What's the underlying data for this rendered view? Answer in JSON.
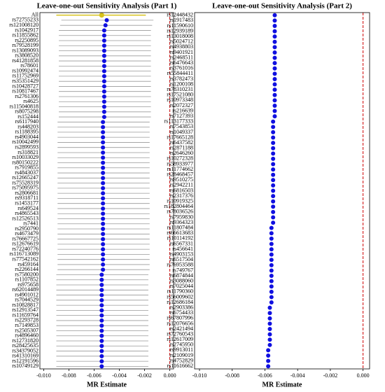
{
  "chart_data": [
    {
      "type": "forest",
      "title": "Leave-one-out Sensitivity Analysis (Part 1)",
      "xlabel": "MR Estimate",
      "categories": [
        "All",
        "rs72755233",
        "rs121008120",
        "rs1042917",
        "rs11855862",
        "rs2250895",
        "rs79528199",
        "rs13089093",
        "rs3808520",
        "rs41281858",
        "rs78601",
        "rs10992474",
        "rs11752969",
        "rs35351429",
        "rs10428727",
        "rs10817467",
        "rs2761306",
        "rs4625",
        "rs115040818",
        "rs8075298",
        "rs152444",
        "rs6117940",
        "rs448203",
        "rs1188395",
        "rs4903044",
        "rs10042499",
        "rs2899593",
        "rs318821",
        "rs10033029",
        "rs80150222",
        "rs7919855",
        "rs4843037",
        "rs12665247",
        "rs75528319",
        "rs75095975",
        "rs2806681",
        "rs9318711",
        "rs1453177",
        "rs649524",
        "rs4865543",
        "rs12526513",
        "rs7441",
        "rs2950790",
        "rs4673479",
        "rs76667725",
        "rs12676619",
        "rs72240776",
        "rs116713089",
        "rs77542162",
        "rs459164",
        "rs2266144",
        "rs7580200",
        "rs1107852",
        "rs975658",
        "rs62014489",
        "rs4901012",
        "rs7044529",
        "rs10828817",
        "rs12913547",
        "rs11659764",
        "rs2293728",
        "rs7149853",
        "rs2505307",
        "rs4896460",
        "rs12731820",
        "rs28425635",
        "rs34379052",
        "rs41310169",
        "rs12191596",
        "rs10749129"
      ],
      "values": [
        -0.0054,
        -0.005,
        -0.0051,
        -0.0052,
        -0.0052,
        -0.0052,
        -0.0052,
        -0.0052,
        -0.0052,
        -0.0052,
        -0.0052,
        -0.0052,
        -0.0052,
        -0.0052,
        -0.0052,
        -0.0052,
        -0.0052,
        -0.0052,
        -0.0052,
        -0.0052,
        -0.0052,
        -0.0053,
        -0.0053,
        -0.0053,
        -0.0053,
        -0.0053,
        -0.0053,
        -0.0053,
        -0.0053,
        -0.0053,
        -0.0053,
        -0.0053,
        -0.0053,
        -0.0053,
        -0.0053,
        -0.0053,
        -0.0053,
        -0.0053,
        -0.0053,
        -0.0053,
        -0.0053,
        -0.0053,
        -0.0053,
        -0.0053,
        -0.0053,
        -0.0053,
        -0.0053,
        -0.0053,
        -0.0053,
        -0.0053,
        -0.0053,
        -0.0054,
        -0.0054,
        -0.0054,
        -0.0054,
        -0.0054,
        -0.0054,
        -0.0054,
        -0.0054,
        -0.0054,
        -0.0054,
        -0.0054,
        -0.0054,
        -0.0054,
        -0.0054,
        -0.0054,
        -0.0054,
        -0.0054,
        -0.0054,
        -0.0054
      ],
      "ci_low": [
        -0.009,
        -0.0086,
        -0.0087,
        -0.0088,
        -0.0088,
        -0.0088,
        -0.0088,
        -0.0088,
        -0.0088,
        -0.0088,
        -0.0088,
        -0.0088,
        -0.0088,
        -0.0088,
        -0.0088,
        -0.0088,
        -0.0088,
        -0.0088,
        -0.0088,
        -0.0088,
        -0.0088,
        -0.0089,
        -0.0089,
        -0.0089,
        -0.0089,
        -0.0089,
        -0.0089,
        -0.0089,
        -0.0089,
        -0.0089,
        -0.0089,
        -0.0089,
        -0.0089,
        -0.0089,
        -0.0089,
        -0.0089,
        -0.0089,
        -0.0089,
        -0.0089,
        -0.0089,
        -0.0089,
        -0.0089,
        -0.0089,
        -0.0089,
        -0.0089,
        -0.0089,
        -0.0089,
        -0.0089,
        -0.0089,
        -0.0089,
        -0.0089,
        -0.009,
        -0.009,
        -0.009,
        -0.009,
        -0.009,
        -0.009,
        -0.009,
        -0.009,
        -0.009,
        -0.009,
        -0.009,
        -0.009,
        -0.009,
        -0.009,
        -0.009,
        -0.009,
        -0.009,
        -0.009,
        -0.009
      ],
      "ci_high": [
        -0.0019,
        -0.0013,
        -0.0014,
        -0.0015,
        -0.0015,
        -0.0015,
        -0.0015,
        -0.0015,
        -0.0015,
        -0.0015,
        -0.0015,
        -0.0015,
        -0.0015,
        -0.0015,
        -0.0015,
        -0.0015,
        -0.0015,
        -0.0015,
        -0.0015,
        -0.0015,
        -0.0015,
        -0.0016,
        -0.0016,
        -0.0016,
        -0.0016,
        -0.0016,
        -0.0016,
        -0.0016,
        -0.0016,
        -0.0016,
        -0.0016,
        -0.0016,
        -0.0016,
        -0.0016,
        -0.0016,
        -0.0016,
        -0.0016,
        -0.0016,
        -0.0016,
        -0.0016,
        -0.0016,
        -0.0016,
        -0.0016,
        -0.0016,
        -0.0016,
        -0.0016,
        -0.0016,
        -0.0016,
        -0.0016,
        -0.0016,
        -0.0016,
        -0.0017,
        -0.0017,
        -0.0017,
        -0.0017,
        -0.0017,
        -0.0017,
        -0.0017,
        -0.0017,
        -0.0017,
        -0.0017,
        -0.0017,
        -0.0017,
        -0.0017,
        -0.0017,
        -0.0017,
        -0.0017,
        -0.0017,
        -0.0017,
        -0.0017
      ],
      "color": "#1010e0",
      "highlight_index": 0,
      "highlight_color": "#d6c21c",
      "ci_color": "#999999",
      "reference_line": 0,
      "reference_color": "#cc0000",
      "xlim": [
        -0.0103,
        0.0003
      ],
      "xticks": [
        {
          "value": -0.01,
          "label": "-0.010"
        },
        {
          "value": -0.008,
          "label": "-0.008"
        },
        {
          "value": -0.006,
          "label": "-0.006"
        },
        {
          "value": -0.004,
          "label": "-0.004"
        },
        {
          "value": -0.002,
          "label": "-0.002"
        },
        {
          "value": 0,
          "label": "0.000"
        }
      ]
    },
    {
      "type": "forest",
      "title": "Leave-one-out Sensitivity Analysis (Part 2)",
      "xlabel": "MR Estimate",
      "categories": [
        "rs12448432",
        "rs1917483",
        "rs11590610",
        "rs12939189",
        "rs13018008",
        "rs5024712",
        "rs4938803",
        "rs9401921",
        "rs2468511",
        "rs6476643",
        "rs3761016",
        "rs55844411",
        "rs3782473",
        "rs1200108",
        "rs78310231",
        "rs17521080",
        "rs10973348",
        "rs2072327",
        "rs216639",
        "rs7127393",
        "rs113177333",
        "rs7543853",
        "rs1049337",
        "rs17665128",
        "rs6437582",
        "rs2871188",
        "rs2646260",
        "rs10272328",
        "rs58933977",
        "rs11774662",
        "rs28468457",
        "rs9510275",
        "rs2942211",
        "rs6816503",
        "rs2317376",
        "rs10919325",
        "rs182804464",
        "rs78036526",
        "rs7959830",
        "rs9364323",
        "rs11807484",
        "rs66613683",
        "rs10114192",
        "rs6567331",
        "rs456641",
        "rs4903153",
        "rs6517504",
        "rs76953588",
        "rs749767",
        "rs6874844",
        "rs3088060",
        "rs7025044",
        "rs11790360",
        "rs56009602",
        "rs12686184",
        "rs2903386",
        "rs6754433",
        "rs67807996",
        "rs12076656",
        "rs2421494",
        "rs72760543",
        "rs12617009",
        "rs2745950",
        "rs9913011",
        "rs2109019",
        "rs4752829",
        "rs11616662"
      ],
      "values": [
        -0.0054,
        -0.0054,
        -0.0054,
        -0.0054,
        -0.0054,
        -0.0054,
        -0.0054,
        -0.0054,
        -0.0054,
        -0.0054,
        -0.0054,
        -0.0054,
        -0.0054,
        -0.0054,
        -0.0054,
        -0.0054,
        -0.0054,
        -0.0054,
        -0.0054,
        -0.0054,
        -0.0055,
        -0.0055,
        -0.0055,
        -0.0055,
        -0.0055,
        -0.0055,
        -0.0055,
        -0.0055,
        -0.0055,
        -0.0055,
        -0.0055,
        -0.0055,
        -0.0055,
        -0.0055,
        -0.0055,
        -0.0055,
        -0.0055,
        -0.0055,
        -0.0055,
        -0.0055,
        -0.0056,
        -0.0056,
        -0.0056,
        -0.0056,
        -0.0056,
        -0.0056,
        -0.0056,
        -0.0056,
        -0.0056,
        -0.0056,
        -0.0056,
        -0.0056,
        -0.0056,
        -0.0056,
        -0.0056,
        -0.0057,
        -0.0057,
        -0.0057,
        -0.0057,
        -0.0057,
        -0.0057,
        -0.0057,
        -0.0057,
        -0.0058,
        -0.0058,
        -0.0058,
        -0.0058
      ],
      "color": "#1010e0",
      "reference_line": 0,
      "reference_color": "#cc0000",
      "xlim": [
        -0.0103,
        0.0004
      ],
      "xticks": [
        {
          "value": -0.01,
          "label": "-0.010"
        },
        {
          "value": -0.008,
          "label": "-0.008"
        },
        {
          "value": -0.006,
          "label": "-0.006"
        },
        {
          "value": -0.004,
          "label": "-0.004"
        },
        {
          "value": -0.002,
          "label": "-0.002"
        },
        {
          "value": 0,
          "label": "0.000"
        }
      ]
    }
  ]
}
